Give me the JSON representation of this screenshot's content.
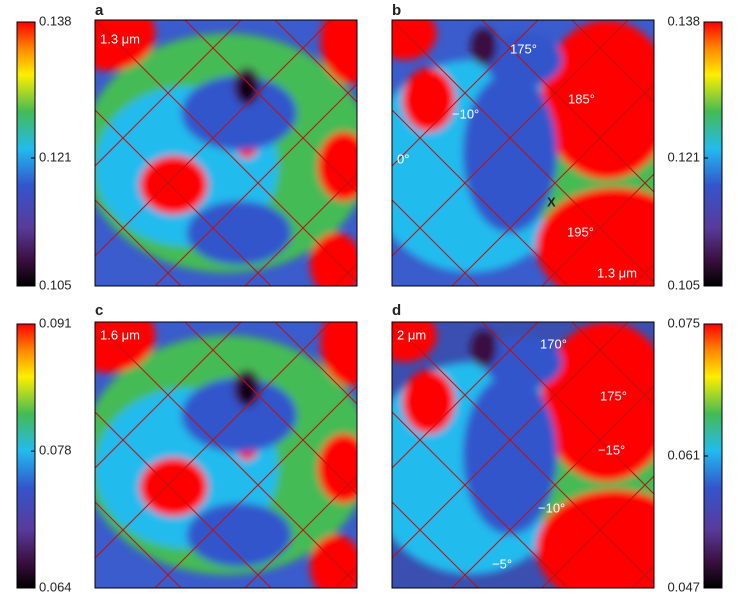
{
  "chart_data": [
    {
      "type": "heatmap",
      "panel": "a",
      "clim": [
        0.105,
        0.138
      ],
      "cticks": [
        0.105,
        0.121,
        0.138
      ],
      "annotations": [
        "1.3 μm"
      ]
    },
    {
      "type": "heatmap",
      "panel": "b",
      "clim": [
        0.105,
        0.138
      ],
      "cticks": [
        0.105,
        0.121,
        0.138
      ],
      "annotations": [
        "175°",
        "185°",
        "−10°",
        "0°",
        "X",
        "195°",
        "1.3 μm"
      ]
    },
    {
      "type": "heatmap",
      "panel": "c",
      "clim": [
        0.064,
        0.091
      ],
      "cticks": [
        0.064,
        0.078,
        0.091
      ],
      "annotations": [
        "1.6 μm"
      ]
    },
    {
      "type": "heatmap",
      "panel": "d",
      "clim": [
        0.047,
        0.075
      ],
      "cticks": [
        0.047,
        0.061,
        0.075
      ],
      "annotations": [
        "2 μm",
        "170°",
        "175°",
        "−15°",
        "−10°",
        "−5°"
      ]
    }
  ]
}
